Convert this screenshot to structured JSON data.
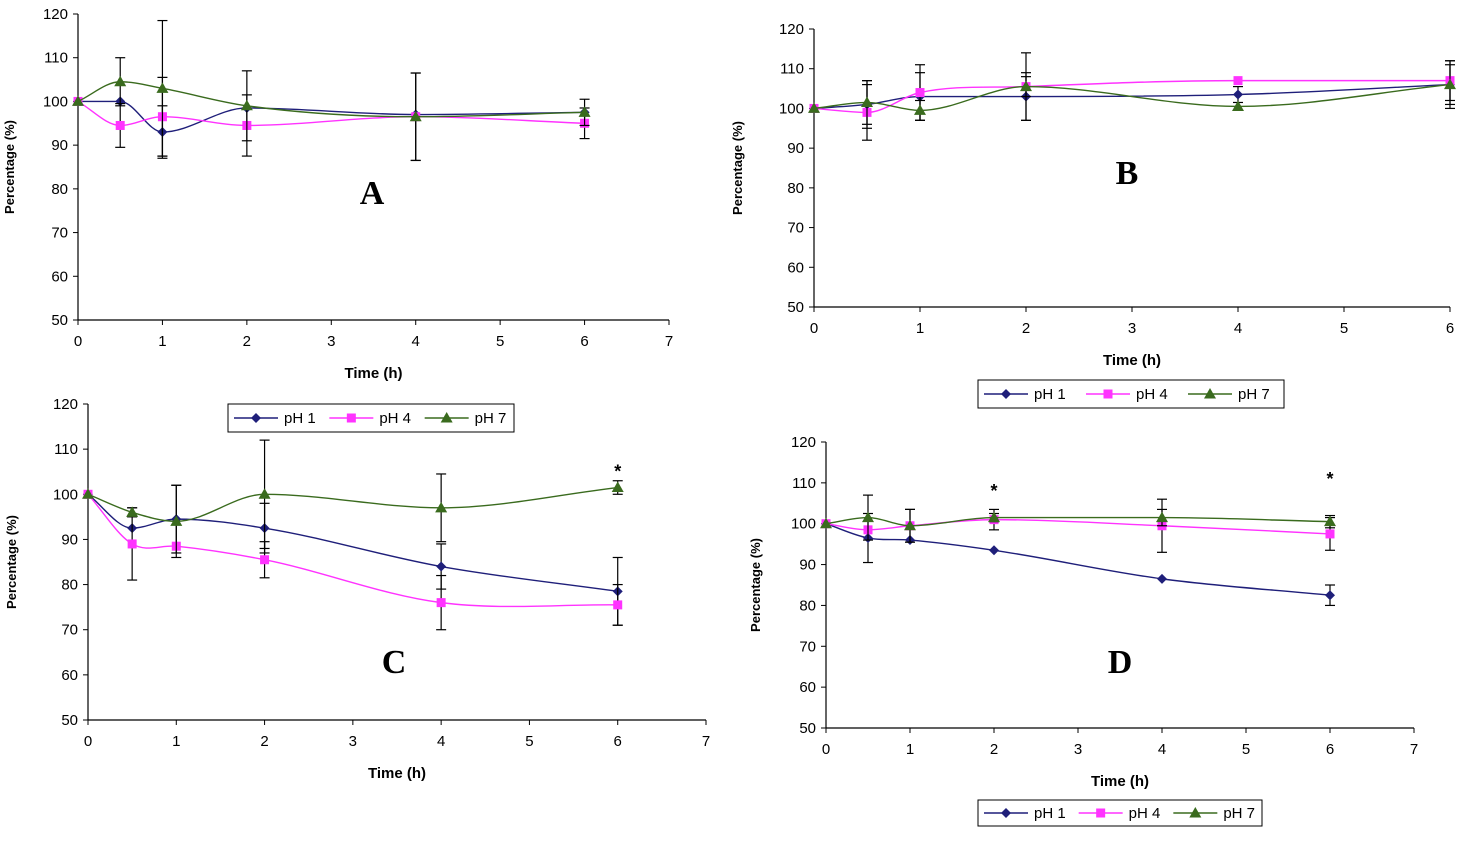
{
  "chart_data": [
    {
      "type": "line",
      "panel_label": "A",
      "xlabel": "Time (h)",
      "ylabel": "Percentage (%)",
      "xlim": [
        0,
        7
      ],
      "ylim": [
        50,
        120
      ],
      "x_ticks": [
        0,
        1,
        2,
        3,
        4,
        5,
        6,
        7
      ],
      "y_ticks": [
        50,
        60,
        70,
        80,
        90,
        100,
        110,
        120
      ],
      "x": [
        0,
        0.5,
        1,
        2,
        4,
        6
      ],
      "series": [
        {
          "name": "pH 1",
          "color": "#1f1f7a",
          "marker": "diamond",
          "values": [
            100,
            100,
            93,
            98.5,
            97,
            97.5
          ],
          "errors": [
            0,
            0,
            6,
            0,
            0,
            0
          ]
        },
        {
          "name": "pH 4",
          "color": "#ff33ff",
          "marker": "square",
          "values": [
            100,
            94.5,
            96.5,
            94.5,
            96.5,
            95
          ],
          "errors": [
            0,
            5,
            9,
            7,
            10,
            3.5
          ]
        },
        {
          "name": "pH 7",
          "color": "#3a6b1e",
          "marker": "triangle",
          "values": [
            100,
            104.5,
            103,
            99,
            96.5,
            97.5
          ],
          "errors": [
            0,
            5.5,
            15.5,
            8,
            10,
            3
          ]
        }
      ],
      "annotations": [],
      "legend": null
    },
    {
      "type": "line",
      "panel_label": "B",
      "xlabel": "Time (h)",
      "ylabel": "Percentage (%)",
      "xlim": [
        0,
        6
      ],
      "ylim": [
        50,
        120
      ],
      "x_ticks": [
        0,
        1,
        2,
        3,
        4,
        5,
        6
      ],
      "y_ticks": [
        50,
        60,
        70,
        80,
        90,
        100,
        110,
        120
      ],
      "x": [
        0,
        0.5,
        1,
        2,
        4,
        6
      ],
      "series": [
        {
          "name": "pH 1",
          "color": "#1f1f7a",
          "marker": "diamond",
          "values": [
            100,
            101,
            103,
            103,
            103.5,
            106
          ],
          "errors": [
            0,
            6,
            6,
            6,
            2,
            5
          ]
        },
        {
          "name": "pH 4",
          "color": "#ff33ff",
          "marker": "square",
          "values": [
            100,
            99,
            104,
            105.5,
            107,
            107
          ],
          "errors": [
            0,
            7,
            7,
            8.5,
            0,
            5
          ]
        },
        {
          "name": "pH 7",
          "color": "#3a6b1e",
          "marker": "triangle",
          "values": [
            100,
            101.5,
            99.5,
            105.5,
            100.5,
            106
          ],
          "errors": [
            0,
            5.5,
            2.5,
            2.5,
            0,
            6
          ]
        }
      ],
      "annotations": [],
      "legend": {
        "position": "bottom",
        "entries": [
          "pH 1",
          "pH 4",
          "pH 7"
        ]
      }
    },
    {
      "type": "line",
      "panel_label": "C",
      "xlabel": "Time (h)",
      "ylabel": "Percentage (%)",
      "xlim": [
        0,
        7
      ],
      "ylim": [
        50,
        120
      ],
      "x_ticks": [
        0,
        1,
        2,
        3,
        4,
        5,
        6,
        7
      ],
      "y_ticks": [
        50,
        60,
        70,
        80,
        90,
        100,
        110,
        120
      ],
      "x": [
        0,
        0.5,
        1,
        2,
        4,
        6
      ],
      "series": [
        {
          "name": "pH 1",
          "color": "#1f1f7a",
          "marker": "diamond",
          "values": [
            100,
            92.5,
            94.5,
            92.5,
            84,
            78.5
          ],
          "errors": [
            0,
            0,
            7.5,
            5.5,
            5,
            7.5
          ]
        },
        {
          "name": "pH 4",
          "color": "#ff33ff",
          "marker": "square",
          "values": [
            100,
            89,
            88.5,
            85.5,
            76,
            75.5
          ],
          "errors": [
            0,
            8,
            0,
            4,
            6,
            4.5
          ]
        },
        {
          "name": "pH 7",
          "color": "#3a6b1e",
          "marker": "triangle",
          "values": [
            100,
            96,
            94,
            100,
            97,
            101.5
          ],
          "errors": [
            0,
            1,
            8,
            12,
            7.5,
            1.5
          ]
        }
      ],
      "annotations": [
        {
          "text": "*",
          "x": 6,
          "y": 105
        }
      ],
      "legend": {
        "position": "top",
        "entries": [
          "pH 1",
          "pH 4",
          "pH 7"
        ]
      }
    },
    {
      "type": "line",
      "panel_label": "D",
      "xlabel": "Time (h)",
      "ylabel": "Percentage (%)",
      "xlim": [
        0,
        7
      ],
      "ylim": [
        50,
        120
      ],
      "x_ticks": [
        0,
        1,
        2,
        3,
        4,
        5,
        6,
        7
      ],
      "y_ticks": [
        50,
        60,
        70,
        80,
        90,
        100,
        110,
        120
      ],
      "x": [
        0,
        0.5,
        1,
        2,
        4,
        6
      ],
      "series": [
        {
          "name": "pH 1",
          "color": "#1f1f7a",
          "marker": "diamond",
          "values": [
            100,
            96.5,
            96,
            93.5,
            86.5,
            82.5
          ],
          "errors": [
            0,
            6,
            0,
            0,
            0,
            2.5
          ]
        },
        {
          "name": "pH 4",
          "color": "#ff33ff",
          "marker": "square",
          "values": [
            100,
            98.5,
            99.5,
            101,
            99.5,
            97.5
          ],
          "errors": [
            0,
            0,
            4,
            2.5,
            6.5,
            4
          ]
        },
        {
          "name": "pH 7",
          "color": "#3a6b1e",
          "marker": "triangle",
          "values": [
            100,
            101.5,
            99.5,
            101.5,
            101.5,
            100.5
          ],
          "errors": [
            0,
            5.5,
            4,
            1,
            2,
            1.5
          ]
        }
      ],
      "annotations": [
        {
          "text": "*",
          "x": 2,
          "y": 108
        },
        {
          "text": "*",
          "x": 6,
          "y": 111
        }
      ],
      "legend": {
        "position": "bottom",
        "entries": [
          "pH 1",
          "pH 4",
          "pH 7"
        ]
      }
    }
  ]
}
